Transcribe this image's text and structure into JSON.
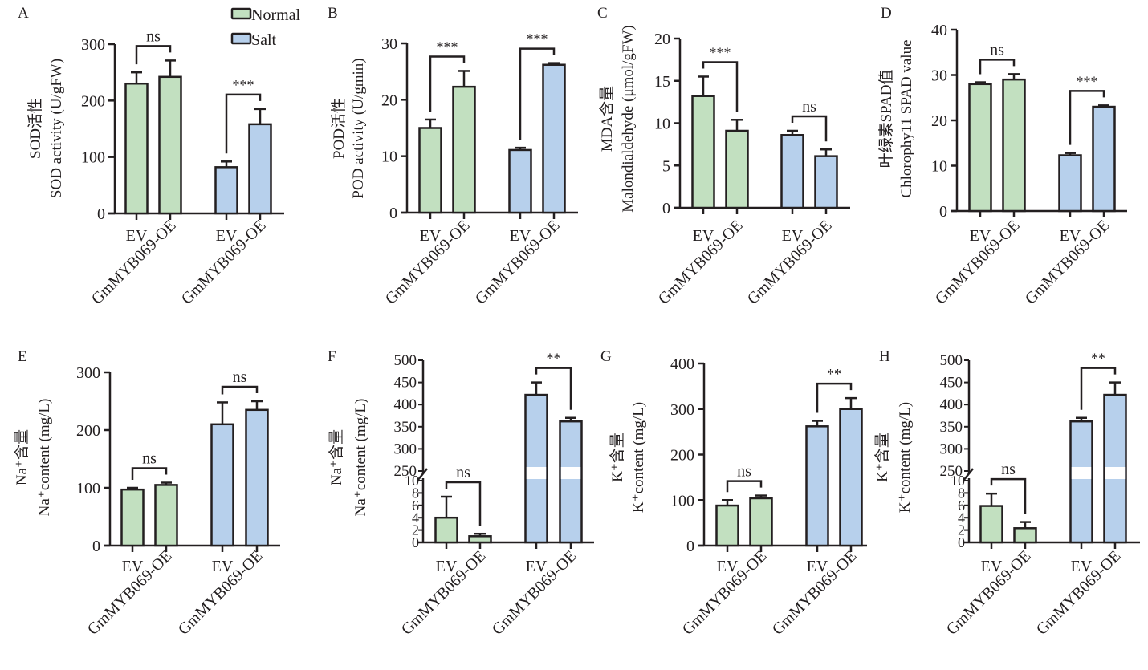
{
  "legend": {
    "items": [
      {
        "label": "Normal",
        "color": "#c2e0c0"
      },
      {
        "label": "Salt",
        "color": "#b7d0ec"
      }
    ],
    "placement": "top, between panels A and B"
  },
  "colors": {
    "normal": "#c2e0c0",
    "salt": "#b7d0ec",
    "stroke": "#231f20"
  },
  "chart_data": [
    {
      "panel": "A",
      "type": "bar",
      "ylabel_cn": "SOD活性",
      "ylabel_en": "SOD activity (U/gFW)",
      "ylim": [
        0,
        300
      ],
      "yticks": [
        0,
        100,
        200,
        300
      ],
      "categories": [
        "EV",
        "GmMYB069-OE",
        "EV",
        "GmMYB069-OE"
      ],
      "groups": [
        "Normal",
        "Normal",
        "Salt",
        "Salt"
      ],
      "values": [
        230,
        242,
        82,
        158
      ],
      "errors": [
        20,
        29,
        10,
        27
      ],
      "significance": [
        {
          "pair": [
            0,
            1
          ],
          "label": "ns"
        },
        {
          "pair": [
            2,
            3
          ],
          "label": "***"
        }
      ]
    },
    {
      "panel": "B",
      "type": "bar",
      "ylabel_cn": "POD活性",
      "ylabel_en": "POD activity (U/gmin)",
      "ylim": [
        0,
        30
      ],
      "yticks": [
        0,
        10,
        20,
        30
      ],
      "categories": [
        "EV",
        "GmMYB069-OE",
        "EV",
        "GmMYB069-OE"
      ],
      "groups": [
        "Normal",
        "Normal",
        "Salt",
        "Salt"
      ],
      "values": [
        15,
        22.3,
        11.1,
        26.2
      ],
      "errors": [
        1.5,
        2.8,
        0.4,
        0.3
      ],
      "significance": [
        {
          "pair": [
            0,
            1
          ],
          "label": "***"
        },
        {
          "pair": [
            2,
            3
          ],
          "label": "***"
        }
      ]
    },
    {
      "panel": "C",
      "type": "bar",
      "ylabel_cn": "MDA含量",
      "ylabel_en": "Malondialdehyde (μmol/gFW)",
      "ylim": [
        0,
        20
      ],
      "yticks": [
        0,
        5,
        10,
        15,
        20
      ],
      "categories": [
        "EV",
        "GmMYB069-OE",
        "EV",
        "GmMYB069-OE"
      ],
      "groups": [
        "Normal",
        "Normal",
        "Salt",
        "Salt"
      ],
      "values": [
        13.2,
        9.1,
        8.6,
        6.1
      ],
      "errors": [
        2.3,
        1.3,
        0.5,
        0.8
      ],
      "significance": [
        {
          "pair": [
            0,
            1
          ],
          "label": "***"
        },
        {
          "pair": [
            2,
            3
          ],
          "label": "ns"
        }
      ]
    },
    {
      "panel": "D",
      "type": "bar",
      "ylabel_cn": "叶绿素SPAD值",
      "ylabel_en": "Chlorophy11 SPAD value",
      "ylim": [
        0,
        40
      ],
      "yticks": [
        0,
        10,
        20,
        30,
        40
      ],
      "categories": [
        "EV",
        "GmMYB069-OE",
        "EV",
        "GmMYB069-OE"
      ],
      "groups": [
        "Normal",
        "Normal",
        "Salt",
        "Salt"
      ],
      "values": [
        28,
        29,
        12.3,
        23
      ],
      "errors": [
        0.4,
        1.2,
        0.5,
        0.3
      ],
      "significance": [
        {
          "pair": [
            0,
            1
          ],
          "label": "ns"
        },
        {
          "pair": [
            2,
            3
          ],
          "label": "***"
        }
      ]
    },
    {
      "panel": "E",
      "type": "bar",
      "ylabel_cn": "Na⁺含量",
      "ylabel_en": "Na⁺content (mg/L)",
      "ylim": [
        0,
        300
      ],
      "yticks": [
        0,
        100,
        200,
        300
      ],
      "categories": [
        "EV",
        "GmMYB069-OE",
        "EV",
        "GmMYB069-OE"
      ],
      "groups": [
        "Normal",
        "Normal",
        "Salt",
        "Salt"
      ],
      "values": [
        97,
        105,
        210,
        235
      ],
      "errors": [
        3,
        4,
        38,
        15
      ],
      "significance": [
        {
          "pair": [
            0,
            1
          ],
          "label": "ns"
        },
        {
          "pair": [
            2,
            3
          ],
          "label": "ns"
        }
      ]
    },
    {
      "panel": "F",
      "type": "bar",
      "broken_axis": true,
      "ylabel_cn": "Na⁺含量",
      "ylabel_en": "Na⁺content (mg/L)",
      "ylim": [
        0,
        500
      ],
      "break": [
        10,
        250
      ],
      "yticks_lower": [
        0,
        2,
        4,
        6,
        8,
        10
      ],
      "yticks_upper": [
        250,
        300,
        350,
        400,
        450,
        500
      ],
      "categories": [
        "EV",
        "GmMYB069-OE",
        "EV",
        "GmMYB069-OE"
      ],
      "groups": [
        "Normal",
        "Normal",
        "Salt",
        "Salt"
      ],
      "values": [
        4,
        1,
        422,
        362
      ],
      "errors": [
        3.4,
        0.4,
        28,
        8
      ],
      "significance": [
        {
          "pair": [
            0,
            1
          ],
          "label": "ns"
        },
        {
          "pair": [
            2,
            3
          ],
          "label": "**"
        }
      ]
    },
    {
      "panel": "G",
      "type": "bar",
      "ylabel_cn": "K⁺含量",
      "ylabel_en": "K⁺content (mg/L)",
      "ylim": [
        0,
        400
      ],
      "yticks": [
        0,
        100,
        200,
        300,
        400
      ],
      "categories": [
        "EV",
        "GmMYB069-OE",
        "EV",
        "GmMYB069-OE"
      ],
      "groups": [
        "Normal",
        "Normal",
        "Salt",
        "Salt"
      ],
      "values": [
        88,
        104,
        262,
        300
      ],
      "errors": [
        12,
        6,
        12,
        24
      ],
      "significance": [
        {
          "pair": [
            0,
            1
          ],
          "label": "ns"
        },
        {
          "pair": [
            2,
            3
          ],
          "label": "**"
        }
      ]
    },
    {
      "panel": "H",
      "type": "bar",
      "broken_axis": true,
      "ylabel_cn": "K⁺含量",
      "ylabel_en": "K⁺content (mg/L)",
      "ylim": [
        0,
        500
      ],
      "break": [
        10,
        250
      ],
      "yticks_lower": [
        0,
        2,
        4,
        6,
        8,
        10
      ],
      "yticks_upper": [
        250,
        300,
        350,
        400,
        450,
        500
      ],
      "categories": [
        "EV",
        "GmMYB069-OE",
        "EV",
        "GmMYB069-OE"
      ],
      "groups": [
        "Normal",
        "Normal",
        "Salt",
        "Salt"
      ],
      "values": [
        5.9,
        2.3,
        362,
        422
      ],
      "errors": [
        2,
        1,
        8,
        28
      ],
      "significance": [
        {
          "pair": [
            0,
            1
          ],
          "label": "ns"
        },
        {
          "pair": [
            2,
            3
          ],
          "label": "**"
        }
      ]
    }
  ]
}
